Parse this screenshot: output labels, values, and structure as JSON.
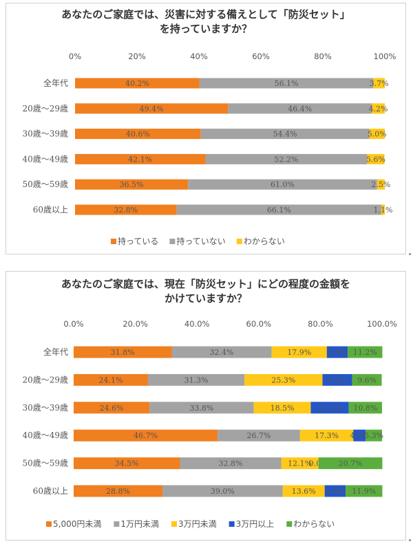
{
  "colors": {
    "orange": "#F07F1F",
    "gray": "#A3A3A3",
    "yellow": "#FFC91A",
    "blue": "#2456C7",
    "green": "#5BAE3E"
  },
  "chart_data": [
    {
      "type": "bar",
      "orientation": "horizontal",
      "stacked": true,
      "title": [
        "あなたのご家庭では、災害に対する備えとして「防災セット」",
        "を持っていますか？"
      ],
      "categories": [
        "全年代",
        "20歳～29歳",
        "30歳～39歳",
        "40歳～49歳",
        "50歳～59歳",
        "60歳以上"
      ],
      "xticks": [
        "0%",
        "20%",
        "40%",
        "60%",
        "80%",
        "100%"
      ],
      "xlim": [
        0,
        100
      ],
      "series": [
        {
          "name": "持っている",
          "color": "#F07F1F",
          "values": [
            40.2,
            49.4,
            40.6,
            42.1,
            36.5,
            32.8
          ],
          "labels": [
            "40.2%",
            "49.4%",
            "40.6%",
            "42.1%",
            "36.5%",
            "32.8%"
          ]
        },
        {
          "name": "持っていない",
          "color": "#A3A3A3",
          "values": [
            56.1,
            46.4,
            54.4,
            52.2,
            61.0,
            66.1
          ],
          "labels": [
            "56.1%",
            "46.4%",
            "54.4%",
            "52.2%",
            "61.0%",
            "66.1%"
          ]
        },
        {
          "name": "わからない",
          "color": "#FFC91A",
          "values": [
            3.7,
            4.2,
            5.0,
            5.6,
            2.5,
            1.1
          ],
          "labels": [
            "3.7%",
            "4.2%",
            "5.0%",
            "5.6%",
            "2.5%",
            "1.1%"
          ]
        }
      ],
      "legend_position": "bottom"
    },
    {
      "type": "bar",
      "orientation": "horizontal",
      "stacked": true,
      "title": [
        "あなたのご家庭では、現在「防災セット」にどの程度の金額を",
        "かけていますか？"
      ],
      "categories": [
        "全年代",
        "20歳～29歳",
        "30歳～39歳",
        "40歳～49歳",
        "50歳～59歳",
        "60歳以上"
      ],
      "xticks": [
        "0.0%",
        "20.0%",
        "40.0%",
        "60.0%",
        "80.0%",
        "100.0%"
      ],
      "xlim": [
        0,
        100
      ],
      "series": [
        {
          "name": "5,000円未満",
          "color": "#F07F1F",
          "values": [
            31.8,
            24.1,
            24.6,
            46.7,
            34.5,
            28.8
          ],
          "labels": [
            "31.8%",
            "24.1%",
            "24.6%",
            "46.7%",
            "34.5%",
            "28.8%"
          ]
        },
        {
          "name": "1万円未満",
          "color": "#A3A3A3",
          "values": [
            32.4,
            31.3,
            33.8,
            26.7,
            32.8,
            39.0
          ],
          "labels": [
            "32.4%",
            "31.3%",
            "33.8%",
            "26.7%",
            "32.8%",
            "39.0%"
          ]
        },
        {
          "name": "3万円未満",
          "color": "#FFC91A",
          "values": [
            17.9,
            25.3,
            18.5,
            17.3,
            12.1,
            13.6
          ],
          "labels": [
            "17.9%",
            "25.3%",
            "18.5%",
            "17.3%",
            "12.1%",
            "13.6%"
          ]
        },
        {
          "name": "3万円以上",
          "color": "#2456C7",
          "values": [
            6.8,
            9.6,
            12.3,
            4.0,
            0.0,
            6.8
          ],
          "labels": [
            "6.8%",
            "9.6%",
            "12.3%",
            "4.0%",
            "0.0%",
            "6.8%"
          ]
        },
        {
          "name": "わからない",
          "color": "#5BAE3E",
          "values": [
            11.2,
            9.6,
            10.8,
            5.3,
            20.7,
            11.9
          ],
          "labels": [
            "11.2%",
            "9.6%",
            "10.8%",
            "5.3%",
            "20.7%",
            "11.9%"
          ]
        }
      ],
      "legend_position": "bottom"
    }
  ]
}
